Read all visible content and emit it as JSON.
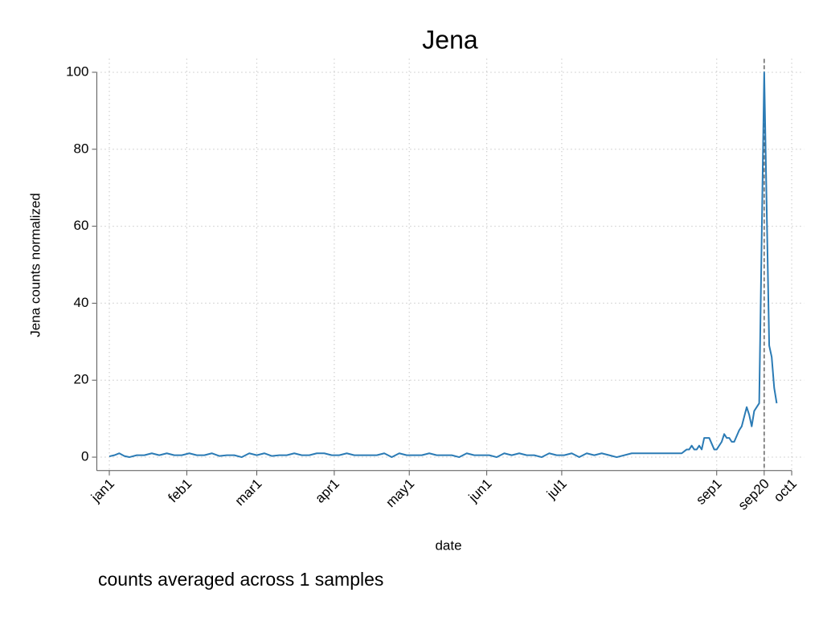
{
  "chart_data": {
    "type": "line",
    "title": "Jena",
    "caption": "counts averaged across 1 samples",
    "xlabel": "date",
    "ylabel": "Jena counts normalized",
    "series": [
      {
        "name": "Jena",
        "color": "#2b7bb5",
        "x": [
          1,
          3,
          5,
          7,
          9,
          12,
          15,
          18,
          21,
          24,
          27,
          30,
          33,
          36,
          39,
          42,
          45,
          48,
          51,
          54,
          57,
          60,
          63,
          66,
          69,
          72,
          75,
          78,
          81,
          84,
          87,
          90,
          93,
          96,
          99,
          102,
          105,
          108,
          111,
          114,
          117,
          120,
          123,
          126,
          129,
          132,
          135,
          138,
          141,
          144,
          147,
          150,
          153,
          156,
          159,
          162,
          165,
          168,
          171,
          174,
          177,
          180,
          183,
          186,
          189,
          192,
          195,
          198,
          201,
          204,
          210,
          220,
          230,
          231,
          232,
          233,
          234,
          235,
          236,
          237,
          238,
          239,
          241,
          243,
          244,
          246,
          247,
          248,
          249,
          250,
          251,
          253,
          254,
          256,
          257,
          258,
          259,
          261,
          263,
          265,
          266,
          267,
          268
        ],
        "values": [
          0.2,
          0.5,
          1,
          0.3,
          0,
          0.5,
          0.5,
          1,
          0.5,
          1,
          0.5,
          0.5,
          1,
          0.5,
          0.5,
          1,
          0.3,
          0.5,
          0.5,
          0,
          1,
          0.5,
          1,
          0.3,
          0.5,
          0.5,
          1,
          0.5,
          0.5,
          1,
          1,
          0.5,
          0.5,
          1,
          0.5,
          0.5,
          0.5,
          0.5,
          1,
          0,
          1,
          0.5,
          0.5,
          0.5,
          1,
          0.5,
          0.5,
          0.5,
          0,
          1,
          0.5,
          0.5,
          0.5,
          0,
          1,
          0.5,
          1,
          0.5,
          0.5,
          0,
          1,
          0.5,
          0.5,
          1,
          0,
          1,
          0.5,
          1,
          0.5,
          0,
          1,
          1,
          1,
          1.5,
          2,
          2,
          3,
          2,
          2,
          3,
          2,
          5,
          5,
          2,
          2,
          4,
          6,
          5,
          5,
          4,
          4,
          7,
          8,
          13,
          11,
          8,
          12,
          14,
          100,
          29,
          26,
          18,
          14
        ]
      }
    ],
    "xlim": [
      -4,
      279
    ],
    "xticks": [
      {
        "value": 1,
        "label": "jan1"
      },
      {
        "value": 32,
        "label": "feb1"
      },
      {
        "value": 60,
        "label": "mar1"
      },
      {
        "value": 91,
        "label": "apr1"
      },
      {
        "value": 121,
        "label": "may1"
      },
      {
        "value": 152,
        "label": "jun1"
      },
      {
        "value": 182,
        "label": "jul1"
      },
      {
        "value": 244,
        "label": "sep1"
      },
      {
        "value": 263,
        "label": "sep20"
      },
      {
        "value": 274,
        "label": "oct1"
      }
    ],
    "ylim": [
      -3.5,
      103.5
    ],
    "yticks": [
      0,
      20,
      40,
      60,
      80,
      100
    ],
    "grid": true,
    "vline": 263
  }
}
